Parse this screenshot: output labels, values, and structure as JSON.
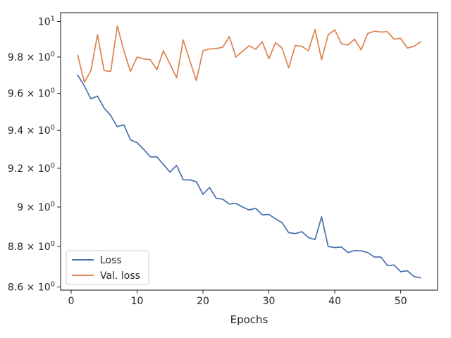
{
  "chart_data": {
    "type": "line",
    "title": "",
    "xlabel": "Epochs",
    "ylabel": "",
    "xlim": [
      -1.6,
      55.6
    ],
    "ylim": [
      8.585,
      10.05
    ],
    "yscale": "log",
    "grid": false,
    "legend_position": "lower-left",
    "x_ticks": [
      0,
      10,
      20,
      30,
      40,
      50
    ],
    "x_tick_labels": [
      "0",
      "10",
      "20",
      "30",
      "40",
      "50"
    ],
    "y_ticks": [
      8.6,
      8.8,
      9.0,
      9.2,
      9.4,
      9.6,
      9.8,
      10
    ],
    "y_tick_labels": [
      {
        "mantissa": "8.6 × 10",
        "exp": "0"
      },
      {
        "mantissa": "8.8 × 10",
        "exp": "0"
      },
      {
        "mantissa": "9 × 10",
        "exp": "0"
      },
      {
        "mantissa": "9.2 × 10",
        "exp": "0"
      },
      {
        "mantissa": "9.4 × 10",
        "exp": "0"
      },
      {
        "mantissa": "9.6 × 10",
        "exp": "0"
      },
      {
        "mantissa": "9.8 × 10",
        "exp": "0"
      },
      {
        "mantissa": "10",
        "exp": "1"
      }
    ],
    "x": [
      1,
      2,
      3,
      4,
      5,
      6,
      7,
      8,
      9,
      10,
      11,
      12,
      13,
      14,
      15,
      16,
      17,
      18,
      19,
      20,
      21,
      22,
      23,
      24,
      25,
      26,
      27,
      28,
      29,
      30,
      31,
      32,
      33,
      34,
      35,
      36,
      37,
      38,
      39,
      40,
      41,
      42,
      43,
      44,
      45,
      46,
      47,
      48,
      49,
      50,
      51,
      52,
      53
    ],
    "series": [
      {
        "name": "Loss",
        "color": "#4c72b0",
        "values": [
          9.7,
          9.64,
          9.57,
          9.585,
          9.52,
          9.48,
          9.42,
          9.43,
          9.35,
          9.335,
          9.3,
          9.26,
          9.26,
          9.22,
          9.18,
          9.215,
          9.14,
          9.14,
          9.13,
          9.065,
          9.1,
          9.045,
          9.04,
          9.015,
          9.018,
          9.0,
          8.985,
          8.993,
          8.96,
          8.962,
          8.94,
          8.92,
          8.87,
          8.865,
          8.875,
          8.845,
          8.835,
          8.95,
          8.8,
          8.795,
          8.798,
          8.77,
          8.78,
          8.778,
          8.77,
          8.748,
          8.748,
          8.705,
          8.708,
          8.675,
          8.68,
          8.652,
          8.645
        ]
      },
      {
        "name": "Val. loss",
        "color": "#dd8452",
        "values": [
          9.81,
          9.66,
          9.725,
          9.925,
          9.725,
          9.72,
          9.975,
          9.835,
          9.72,
          9.8,
          9.79,
          9.785,
          9.73,
          9.835,
          9.76,
          9.685,
          9.895,
          9.78,
          9.67,
          9.835,
          9.845,
          9.847,
          9.855,
          9.915,
          9.8,
          9.832,
          9.863,
          9.843,
          9.885,
          9.79,
          9.88,
          9.85,
          9.74,
          9.865,
          9.86,
          9.835,
          9.955,
          9.785,
          9.925,
          9.952,
          9.875,
          9.867,
          9.9,
          9.84,
          9.932,
          9.945,
          9.94,
          9.942,
          9.9,
          9.905,
          9.85,
          9.86,
          9.885
        ]
      }
    ]
  }
}
